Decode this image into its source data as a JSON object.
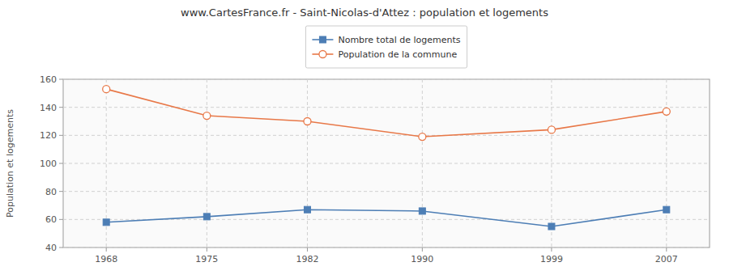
{
  "chart_data": {
    "type": "line",
    "title": "www.CartesFrance.fr - Saint-Nicolas-d'Attez : population et logements",
    "ylabel": "Population et logements",
    "x": [
      1968,
      1975,
      1982,
      1990,
      1999,
      2007
    ],
    "series": [
      {
        "name": "Nombre total de logements",
        "color": "#4d7eb5",
        "marker": "square",
        "line_style": "solid",
        "values": [
          58,
          62,
          67,
          66,
          55,
          67
        ]
      },
      {
        "name": "Population de la commune",
        "color": "#e87848",
        "marker": "circle",
        "line_style": "solid",
        "values": [
          153,
          134,
          130,
          119,
          124,
          137
        ]
      }
    ],
    "xlim": [
      1965,
      2010
    ],
    "xticks": [
      1968,
      1975,
      1982,
      1990,
      1999,
      2007
    ],
    "ylim": [
      40,
      160
    ],
    "yticks": [
      40,
      60,
      80,
      100,
      120,
      140,
      160
    ],
    "grid": true,
    "legend": "top"
  }
}
